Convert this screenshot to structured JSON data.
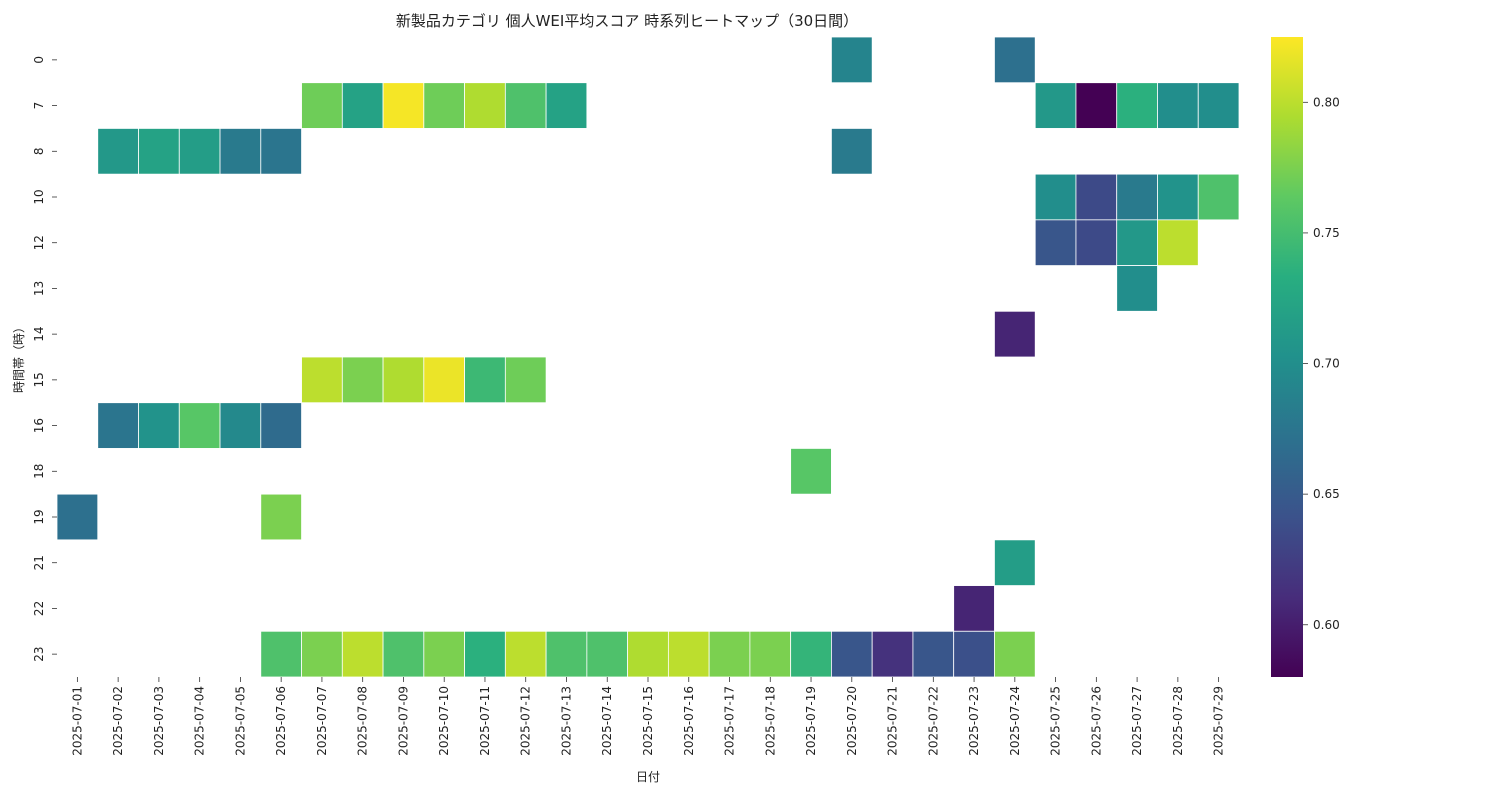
{
  "chart_data": {
    "type": "heatmap",
    "title": "新製品カテゴリ 個人WEI平均スコア 時系列ヒートマップ（30日間）",
    "xlabel": "日付",
    "ylabel": "時間帯（時）",
    "colormap": "viridis",
    "vmin": 0.58,
    "vmax": 0.825,
    "colorbar_ticks": [
      0.6,
      0.65,
      0.7,
      0.75,
      0.8
    ],
    "colorbar_tick_labels": [
      "0.60",
      "0.65",
      "0.70",
      "0.75",
      "0.80"
    ],
    "x_categories": [
      "2025-07-01",
      "2025-07-02",
      "2025-07-03",
      "2025-07-04",
      "2025-07-05",
      "2025-07-06",
      "2025-07-07",
      "2025-07-08",
      "2025-07-09",
      "2025-07-10",
      "2025-07-11",
      "2025-07-12",
      "2025-07-13",
      "2025-07-14",
      "2025-07-15",
      "2025-07-16",
      "2025-07-17",
      "2025-07-18",
      "2025-07-19",
      "2025-07-20",
      "2025-07-21",
      "2025-07-22",
      "2025-07-23",
      "2025-07-24",
      "2025-07-25",
      "2025-07-26",
      "2025-07-27",
      "2025-07-28",
      "2025-07-29"
    ],
    "y_categories": [
      "0",
      "7",
      "8",
      "10",
      "12",
      "13",
      "14",
      "15",
      "16",
      "18",
      "19",
      "21",
      "22",
      "23"
    ],
    "values": [
      [
        null,
        null,
        null,
        null,
        null,
        null,
        null,
        null,
        null,
        null,
        null,
        null,
        null,
        null,
        null,
        null,
        null,
        null,
        null,
        0.69,
        null,
        null,
        null,
        0.67,
        null,
        null,
        null,
        null,
        null
      ],
      [
        null,
        null,
        null,
        null,
        null,
        null,
        0.77,
        0.72,
        0.822,
        0.77,
        0.795,
        0.755,
        0.72,
        null,
        null,
        null,
        null,
        null,
        null,
        null,
        null,
        null,
        null,
        null,
        0.71,
        0.58,
        0.735,
        0.7,
        0.7
      ],
      [
        null,
        0.71,
        0.72,
        0.715,
        0.68,
        0.675,
        null,
        null,
        null,
        null,
        null,
        null,
        null,
        null,
        null,
        null,
        null,
        null,
        null,
        0.68,
        null,
        null,
        null,
        null,
        null,
        null,
        null,
        null,
        null
      ],
      [
        null,
        null,
        null,
        null,
        null,
        null,
        null,
        null,
        null,
        null,
        null,
        null,
        null,
        null,
        null,
        null,
        null,
        null,
        null,
        null,
        null,
        null,
        null,
        null,
        0.7,
        0.635,
        0.68,
        0.705,
        0.755
      ],
      [
        null,
        null,
        null,
        null,
        null,
        null,
        null,
        null,
        null,
        null,
        null,
        null,
        null,
        null,
        null,
        null,
        null,
        null,
        null,
        null,
        null,
        null,
        null,
        null,
        0.645,
        0.635,
        0.71,
        0.8,
        null
      ],
      [
        null,
        null,
        null,
        null,
        null,
        null,
        null,
        null,
        null,
        null,
        null,
        null,
        null,
        null,
        null,
        null,
        null,
        null,
        null,
        null,
        null,
        null,
        null,
        null,
        null,
        null,
        0.7,
        null,
        null
      ],
      [
        null,
        null,
        null,
        null,
        null,
        null,
        null,
        null,
        null,
        null,
        null,
        null,
        null,
        null,
        null,
        null,
        null,
        null,
        null,
        null,
        null,
        null,
        null,
        0.605,
        null,
        null,
        null,
        null,
        null
      ],
      [
        null,
        null,
        null,
        null,
        null,
        null,
        0.8,
        0.775,
        0.795,
        0.818,
        0.745,
        0.77,
        null,
        null,
        null,
        null,
        null,
        null,
        null,
        null,
        null,
        null,
        null,
        null,
        null,
        null,
        null,
        null,
        null
      ],
      [
        null,
        0.675,
        0.705,
        0.76,
        0.695,
        0.665,
        null,
        null,
        null,
        null,
        null,
        null,
        null,
        null,
        null,
        null,
        null,
        null,
        null,
        null,
        null,
        null,
        null,
        null,
        null,
        null,
        null,
        null,
        null
      ],
      [
        null,
        null,
        null,
        null,
        null,
        null,
        null,
        null,
        null,
        null,
        null,
        null,
        null,
        null,
        null,
        null,
        null,
        null,
        0.76,
        null,
        null,
        null,
        null,
        null,
        null,
        null,
        null,
        null,
        null
      ],
      [
        0.67,
        null,
        null,
        null,
        null,
        0.775,
        null,
        null,
        null,
        null,
        null,
        null,
        null,
        null,
        null,
        null,
        null,
        null,
        null,
        null,
        null,
        null,
        null,
        null,
        null,
        null,
        null,
        null,
        null
      ],
      [
        null,
        null,
        null,
        null,
        null,
        null,
        null,
        null,
        null,
        null,
        null,
        null,
        null,
        null,
        null,
        null,
        null,
        null,
        null,
        null,
        null,
        null,
        null,
        0.715,
        null,
        null,
        null,
        null,
        null
      ],
      [
        null,
        null,
        null,
        null,
        null,
        null,
        null,
        null,
        null,
        null,
        null,
        null,
        null,
        null,
        null,
        null,
        null,
        null,
        null,
        null,
        null,
        null,
        0.605,
        null,
        null,
        null,
        null,
        null,
        null
      ],
      [
        null,
        null,
        null,
        null,
        null,
        0.755,
        0.775,
        0.8,
        0.755,
        0.775,
        0.735,
        0.8,
        0.755,
        0.755,
        0.795,
        0.8,
        0.775,
        0.775,
        0.74,
        0.645,
        0.615,
        0.645,
        0.64,
        0.775,
        null,
        null,
        null,
        null,
        null
      ]
    ]
  }
}
